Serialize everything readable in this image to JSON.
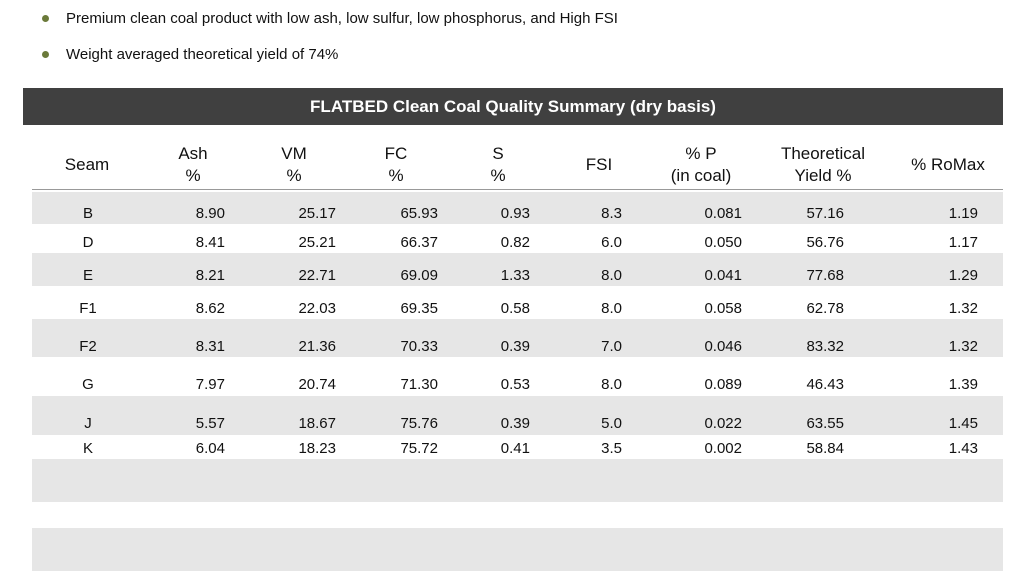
{
  "bullets": [
    "Premium clean coal product with low ash, low sulfur, low phosphorus, and High FSI",
    "Weight averaged theoretical yield of 74%"
  ],
  "table": {
    "title": "FLATBED Clean Coal Quality Summary (dry basis)",
    "headers": [
      {
        "line1": "Seam",
        "line2": ""
      },
      {
        "line1": "Ash",
        "line2": "%"
      },
      {
        "line1": "VM",
        "line2": "%"
      },
      {
        "line1": "FC",
        "line2": "%"
      },
      {
        "line1": "S",
        "line2": "%"
      },
      {
        "line1": "FSI",
        "line2": ""
      },
      {
        "line1": "% P",
        "line2": "(in coal)"
      },
      {
        "line1": "Theoretical",
        "line2": "Yield %"
      },
      {
        "line1": "% RoMax",
        "line2": ""
      }
    ],
    "rows": [
      [
        "B",
        "8.90",
        "25.17",
        "65.93",
        "0.93",
        "8.3",
        "0.081",
        "57.16",
        "1.19"
      ],
      [
        "D",
        "8.41",
        "25.21",
        "66.37",
        "0.82",
        "6.0",
        "0.050",
        "56.76",
        "1.17"
      ],
      [
        "E",
        "8.21",
        "22.71",
        "69.09",
        "1.33",
        "8.0",
        "0.041",
        "77.68",
        "1.29"
      ],
      [
        "F1",
        "8.62",
        "22.03",
        "69.35",
        "0.58",
        "8.0",
        "0.058",
        "62.78",
        "1.32"
      ],
      [
        "F2",
        "8.31",
        "21.36",
        "70.33",
        "0.39",
        "7.0",
        "0.046",
        "83.32",
        "1.32"
      ],
      [
        "G",
        "7.97",
        "20.74",
        "71.30",
        "0.53",
        "8.0",
        "0.089",
        "46.43",
        "1.39"
      ],
      [
        "J",
        "5.57",
        "18.67",
        "75.76",
        "0.39",
        "5.0",
        "0.022",
        "63.55",
        "1.45"
      ],
      [
        "K",
        "6.04",
        "18.23",
        "75.72",
        "0.41",
        "3.5",
        "0.002",
        "58.84",
        "1.43"
      ]
    ]
  },
  "colors": {
    "title_bar": "#404040",
    "band": "#e6e6e6",
    "bullet": "#6b7a3a"
  }
}
